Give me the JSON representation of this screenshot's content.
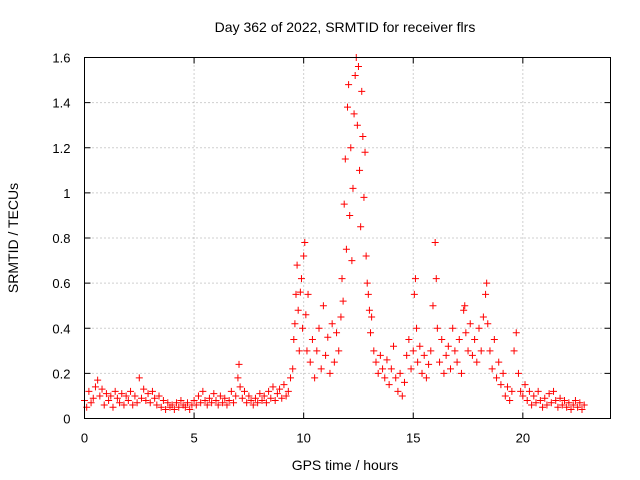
{
  "chart_data": {
    "type": "scatter",
    "title": "Day 362 of 2022, SRMTID for receiver flrs",
    "xlabel": "GPS time / hours",
    "ylabel": "SRMTID / TECUs",
    "xlim": [
      0,
      24
    ],
    "ylim": [
      0,
      1.6
    ],
    "xticks": [
      0,
      5,
      10,
      15,
      20
    ],
    "yticks": [
      0,
      0.2,
      0.4,
      0.6,
      0.8,
      1,
      1.2,
      1.4,
      1.6
    ],
    "xtick_labels": [
      "0",
      "5",
      "10",
      "15",
      "20"
    ],
    "ytick_labels": [
      "0",
      "0.2",
      "0.4",
      "0.6",
      "0.8",
      "1",
      "1.2",
      "1.4",
      "1.6"
    ],
    "grid": true,
    "marker": "+",
    "color": "#ff0000",
    "series": [
      {
        "name": "SRMTID",
        "points": [
          [
            0.0,
            0.08
          ],
          [
            0.1,
            0.05
          ],
          [
            0.2,
            0.12
          ],
          [
            0.3,
            0.07
          ],
          [
            0.4,
            0.09
          ],
          [
            0.5,
            0.14
          ],
          [
            0.6,
            0.17
          ],
          [
            0.7,
            0.1
          ],
          [
            0.8,
            0.13
          ],
          [
            0.9,
            0.06
          ],
          [
            1.0,
            0.11
          ],
          [
            1.1,
            0.08
          ],
          [
            1.2,
            0.1
          ],
          [
            1.3,
            0.05
          ],
          [
            1.4,
            0.12
          ],
          [
            1.5,
            0.09
          ],
          [
            1.6,
            0.07
          ],
          [
            1.7,
            0.11
          ],
          [
            1.8,
            0.06
          ],
          [
            1.9,
            0.1
          ],
          [
            2.0,
            0.08
          ],
          [
            2.1,
            0.12
          ],
          [
            2.2,
            0.06
          ],
          [
            2.3,
            0.1
          ],
          [
            2.4,
            0.07
          ],
          [
            2.5,
            0.18
          ],
          [
            2.6,
            0.09
          ],
          [
            2.7,
            0.13
          ],
          [
            2.8,
            0.08
          ],
          [
            2.9,
            0.11
          ],
          [
            3.0,
            0.07
          ],
          [
            3.1,
            0.12
          ],
          [
            3.2,
            0.09
          ],
          [
            3.3,
            0.06
          ],
          [
            3.4,
            0.1
          ],
          [
            3.5,
            0.05
          ],
          [
            3.6,
            0.08
          ],
          [
            3.7,
            0.04
          ],
          [
            3.8,
            0.07
          ],
          [
            3.9,
            0.05
          ],
          [
            4.0,
            0.06
          ],
          [
            4.1,
            0.04
          ],
          [
            4.2,
            0.07
          ],
          [
            4.3,
            0.05
          ],
          [
            4.4,
            0.08
          ],
          [
            4.5,
            0.06
          ],
          [
            4.6,
            0.05
          ],
          [
            4.7,
            0.07
          ],
          [
            4.8,
            0.04
          ],
          [
            4.9,
            0.06
          ],
          [
            5.0,
            0.08
          ],
          [
            5.1,
            0.06
          ],
          [
            5.2,
            0.1
          ],
          [
            5.3,
            0.07
          ],
          [
            5.4,
            0.12
          ],
          [
            5.5,
            0.08
          ],
          [
            5.6,
            0.06
          ],
          [
            5.7,
            0.09
          ],
          [
            5.8,
            0.07
          ],
          [
            5.9,
            0.11
          ],
          [
            6.0,
            0.08
          ],
          [
            6.1,
            0.06
          ],
          [
            6.2,
            0.1
          ],
          [
            6.3,
            0.07
          ],
          [
            6.4,
            0.09
          ],
          [
            6.5,
            0.06
          ],
          [
            6.6,
            0.08
          ],
          [
            6.7,
            0.12
          ],
          [
            6.8,
            0.07
          ],
          [
            6.9,
            0.1
          ],
          [
            7.0,
            0.18
          ],
          [
            7.05,
            0.24
          ],
          [
            7.1,
            0.14
          ],
          [
            7.2,
            0.09
          ],
          [
            7.3,
            0.12
          ],
          [
            7.4,
            0.07
          ],
          [
            7.5,
            0.1
          ],
          [
            7.6,
            0.08
          ],
          [
            7.7,
            0.06
          ],
          [
            7.8,
            0.09
          ],
          [
            7.9,
            0.07
          ],
          [
            8.0,
            0.11
          ],
          [
            8.1,
            0.08
          ],
          [
            8.2,
            0.1
          ],
          [
            8.3,
            0.07
          ],
          [
            8.4,
            0.12
          ],
          [
            8.5,
            0.09
          ],
          [
            8.6,
            0.14
          ],
          [
            8.7,
            0.08
          ],
          [
            8.8,
            0.11
          ],
          [
            8.9,
            0.13
          ],
          [
            9.0,
            0.09
          ],
          [
            9.1,
            0.15
          ],
          [
            9.2,
            0.1
          ],
          [
            9.3,
            0.12
          ],
          [
            9.4,
            0.18
          ],
          [
            9.5,
            0.22
          ],
          [
            9.55,
            0.35
          ],
          [
            9.6,
            0.42
          ],
          [
            9.65,
            0.55
          ],
          [
            9.7,
            0.68
          ],
          [
            9.75,
            0.48
          ],
          [
            9.8,
            0.3
          ],
          [
            9.85,
            0.56
          ],
          [
            9.9,
            0.62
          ],
          [
            9.95,
            0.4
          ],
          [
            10.0,
            0.72
          ],
          [
            10.05,
            0.78
          ],
          [
            10.1,
            0.46
          ],
          [
            10.15,
            0.3
          ],
          [
            10.2,
            0.55
          ],
          [
            10.3,
            0.25
          ],
          [
            10.4,
            0.35
          ],
          [
            10.5,
            0.18
          ],
          [
            10.6,
            0.3
          ],
          [
            10.7,
            0.4
          ],
          [
            10.8,
            0.22
          ],
          [
            10.9,
            0.5
          ],
          [
            11.0,
            0.28
          ],
          [
            11.1,
            0.36
          ],
          [
            11.2,
            0.2
          ],
          [
            11.3,
            0.42
          ],
          [
            11.4,
            0.25
          ],
          [
            11.5,
            0.38
          ],
          [
            11.6,
            0.3
          ],
          [
            11.7,
            0.45
          ],
          [
            11.75,
            0.62
          ],
          [
            11.8,
            0.52
          ],
          [
            11.85,
            0.95
          ],
          [
            11.9,
            1.15
          ],
          [
            11.95,
            0.75
          ],
          [
            12.0,
            1.38
          ],
          [
            12.05,
            1.48
          ],
          [
            12.1,
            0.9
          ],
          [
            12.15,
            1.2
          ],
          [
            12.2,
            0.7
          ],
          [
            12.25,
            1.02
          ],
          [
            12.3,
            1.35
          ],
          [
            12.35,
            1.52
          ],
          [
            12.4,
            1.6
          ],
          [
            12.45,
            1.3
          ],
          [
            12.5,
            1.56
          ],
          [
            12.55,
            1.1
          ],
          [
            12.6,
            0.85
          ],
          [
            12.65,
            1.45
          ],
          [
            12.7,
            1.25
          ],
          [
            12.75,
            0.98
          ],
          [
            12.8,
            1.18
          ],
          [
            12.85,
            0.72
          ],
          [
            12.9,
            0.6
          ],
          [
            12.95,
            0.55
          ],
          [
            13.0,
            0.48
          ],
          [
            13.05,
            0.38
          ],
          [
            13.1,
            0.45
          ],
          [
            13.2,
            0.3
          ],
          [
            13.3,
            0.25
          ],
          [
            13.4,
            0.2
          ],
          [
            13.5,
            0.28
          ],
          [
            13.6,
            0.22
          ],
          [
            13.7,
            0.18
          ],
          [
            13.8,
            0.26
          ],
          [
            13.9,
            0.15
          ],
          [
            14.0,
            0.22
          ],
          [
            14.1,
            0.32
          ],
          [
            14.2,
            0.18
          ],
          [
            14.3,
            0.12
          ],
          [
            14.4,
            0.2
          ],
          [
            14.5,
            0.1
          ],
          [
            14.6,
            0.16
          ],
          [
            14.7,
            0.28
          ],
          [
            14.8,
            0.35
          ],
          [
            14.9,
            0.22
          ],
          [
            15.0,
            0.3
          ],
          [
            15.05,
            0.55
          ],
          [
            15.1,
            0.62
          ],
          [
            15.15,
            0.4
          ],
          [
            15.2,
            0.25
          ],
          [
            15.3,
            0.32
          ],
          [
            15.4,
            0.2
          ],
          [
            15.5,
            0.28
          ],
          [
            15.6,
            0.18
          ],
          [
            15.7,
            0.24
          ],
          [
            15.8,
            0.3
          ],
          [
            15.9,
            0.5
          ],
          [
            16.0,
            0.78
          ],
          [
            16.05,
            0.62
          ],
          [
            16.1,
            0.4
          ],
          [
            16.2,
            0.25
          ],
          [
            16.3,
            0.35
          ],
          [
            16.4,
            0.2
          ],
          [
            16.5,
            0.28
          ],
          [
            16.6,
            0.32
          ],
          [
            16.7,
            0.22
          ],
          [
            16.8,
            0.4
          ],
          [
            16.9,
            0.3
          ],
          [
            17.0,
            0.25
          ],
          [
            17.1,
            0.35
          ],
          [
            17.2,
            0.2
          ],
          [
            17.3,
            0.48
          ],
          [
            17.35,
            0.5
          ],
          [
            17.4,
            0.38
          ],
          [
            17.5,
            0.3
          ],
          [
            17.6,
            0.42
          ],
          [
            17.7,
            0.28
          ],
          [
            17.8,
            0.35
          ],
          [
            17.9,
            0.25
          ],
          [
            18.0,
            0.4
          ],
          [
            18.1,
            0.3
          ],
          [
            18.2,
            0.45
          ],
          [
            18.3,
            0.55
          ],
          [
            18.35,
            0.6
          ],
          [
            18.4,
            0.42
          ],
          [
            18.5,
            0.3
          ],
          [
            18.6,
            0.22
          ],
          [
            18.7,
            0.35
          ],
          [
            18.8,
            0.18
          ],
          [
            18.9,
            0.25
          ],
          [
            19.0,
            0.15
          ],
          [
            19.1,
            0.2
          ],
          [
            19.2,
            0.1
          ],
          [
            19.3,
            0.14
          ],
          [
            19.4,
            0.08
          ],
          [
            19.5,
            0.12
          ],
          [
            19.6,
            0.3
          ],
          [
            19.7,
            0.38
          ],
          [
            19.8,
            0.2
          ],
          [
            19.9,
            0.12
          ],
          [
            20.0,
            0.1
          ],
          [
            20.1,
            0.15
          ],
          [
            20.2,
            0.08
          ],
          [
            20.3,
            0.12
          ],
          [
            20.4,
            0.06
          ],
          [
            20.5,
            0.1
          ],
          [
            20.6,
            0.07
          ],
          [
            20.7,
            0.12
          ],
          [
            20.8,
            0.08
          ],
          [
            20.9,
            0.05
          ],
          [
            21.0,
            0.09
          ],
          [
            21.1,
            0.06
          ],
          [
            21.2,
            0.11
          ],
          [
            21.3,
            0.07
          ],
          [
            21.4,
            0.12
          ],
          [
            21.5,
            0.08
          ],
          [
            21.6,
            0.05
          ],
          [
            21.7,
            0.09
          ],
          [
            21.8,
            0.06
          ],
          [
            21.9,
            0.08
          ],
          [
            22.0,
            0.05
          ],
          [
            22.1,
            0.07
          ],
          [
            22.2,
            0.04
          ],
          [
            22.3,
            0.06
          ],
          [
            22.4,
            0.08
          ],
          [
            22.5,
            0.05
          ],
          [
            22.6,
            0.07
          ],
          [
            22.7,
            0.04
          ],
          [
            22.8,
            0.06
          ]
        ]
      }
    ]
  }
}
